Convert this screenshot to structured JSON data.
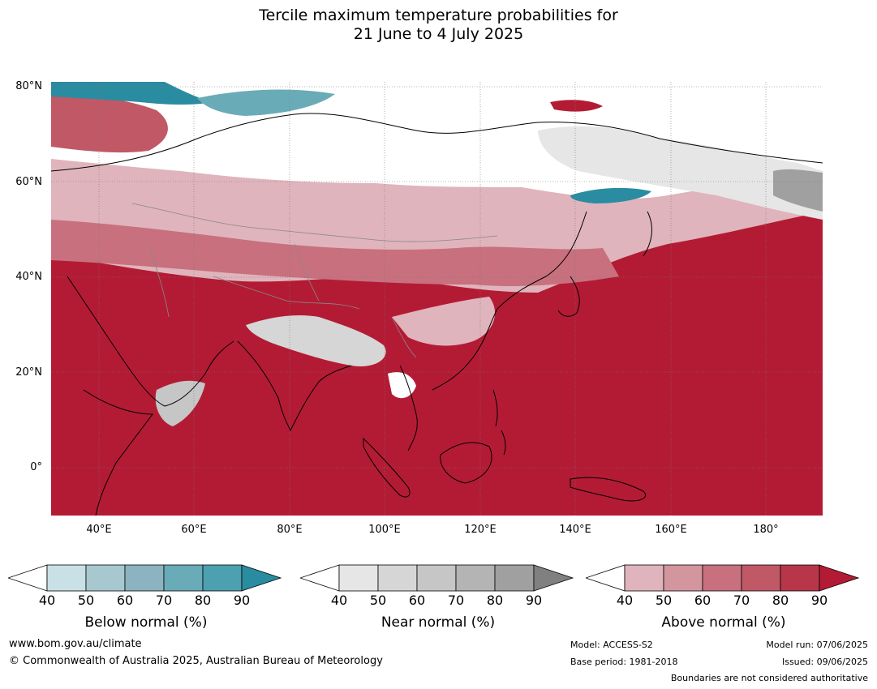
{
  "title_line1": "Tercile maximum temperature probabilities for",
  "title_line2": "21 June to 4 July 2025",
  "map": {
    "lat_labels": [
      "80°N",
      "60°N",
      "40°N",
      "20°N",
      "0°"
    ],
    "lon_labels": [
      "40°E",
      "60°E",
      "80°E",
      "100°E",
      "120°E",
      "140°E",
      "160°E",
      "180°"
    ],
    "ocean_color": "#b31b34"
  },
  "colorbars": [
    {
      "label": "Below normal (%)",
      "ticks": [
        "40",
        "50",
        "60",
        "70",
        "80",
        "90"
      ],
      "colors": [
        "#ffffff",
        "#c8e0e6",
        "#a8c8d0",
        "#8cb4c0",
        "#6aabb8",
        "#4ca0b0",
        "#2a8ca0"
      ]
    },
    {
      "label": "Near normal (%)",
      "ticks": [
        "40",
        "50",
        "60",
        "70",
        "80",
        "90"
      ],
      "colors": [
        "#ffffff",
        "#e6e6e6",
        "#d6d6d6",
        "#c6c6c6",
        "#b4b4b4",
        "#a0a0a0",
        "#808080"
      ]
    },
    {
      "label": "Above normal (%)",
      "ticks": [
        "40",
        "50",
        "60",
        "70",
        "80",
        "90"
      ],
      "colors": [
        "#ffffff",
        "#e0b4bc",
        "#d4969e",
        "#c8707e",
        "#c05866",
        "#b8364a",
        "#b31b34"
      ]
    }
  ],
  "footer": {
    "url": "www.bom.gov.au/climate",
    "copyright": "© Commonwealth of Australia 2025, Australian Bureau of Meteorology",
    "model": "Model: ACCESS-S2",
    "base_period": "Base period: 1981-2018",
    "model_run": "Model run: 07/06/2025",
    "issued": "Issued: 09/06/2025",
    "disclaimer": "Boundaries are not considered authoritative"
  }
}
